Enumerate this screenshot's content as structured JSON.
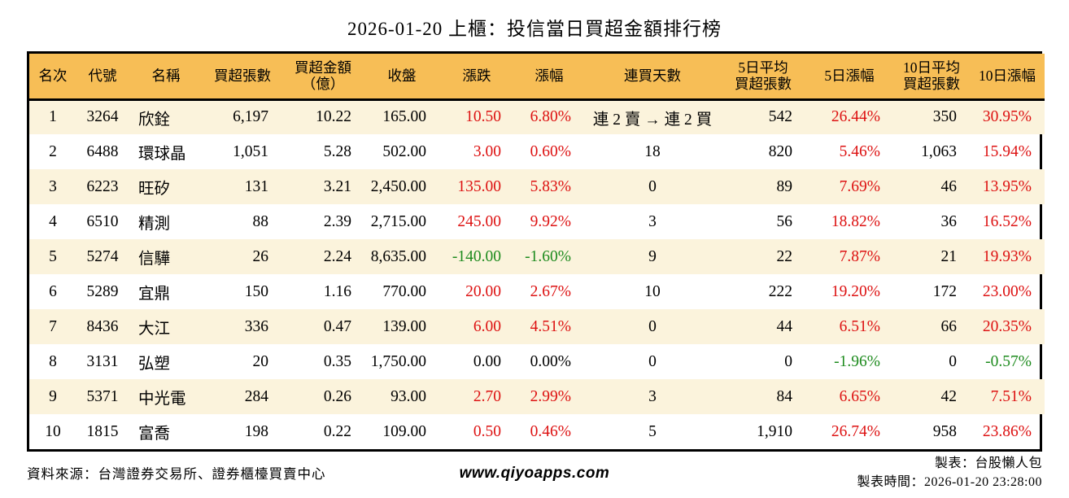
{
  "chart_data": {
    "type": "table",
    "title": "2026-01-20 上櫃：投信當日買超金額排行榜",
    "columns": [
      {
        "id": "rank",
        "label": "名次",
        "align": "center"
      },
      {
        "id": "code",
        "label": "代號",
        "align": "center"
      },
      {
        "id": "name",
        "label": "名稱",
        "align": "left"
      },
      {
        "id": "net-buy-volume",
        "label": "買超張數",
        "align": "right"
      },
      {
        "id": "net-buy-amount",
        "label": "買超金額\n（億）",
        "align": "right"
      },
      {
        "id": "close",
        "label": "收盤",
        "align": "right"
      },
      {
        "id": "change",
        "label": "漲跌",
        "align": "right"
      },
      {
        "id": "change-pct",
        "label": "漲幅",
        "align": "right"
      },
      {
        "id": "consecutive-days",
        "label": "連買天數",
        "align": "center"
      },
      {
        "id": "avg5-volume",
        "label": "5日平均\n買超張數",
        "align": "right"
      },
      {
        "id": "gain5",
        "label": "5日漲幅",
        "align": "right"
      },
      {
        "id": "avg10-volume",
        "label": "10日平均\n買超張數",
        "align": "right"
      },
      {
        "id": "gain10",
        "label": "10日漲幅",
        "align": "right"
      }
    ],
    "rows": [
      {
        "cells": [
          "1",
          "3264",
          "欣銓",
          "6,197",
          "10.22",
          "165.00",
          "10.50",
          "6.80%",
          "連 2 賣 → 連 2 買",
          "542",
          "26.44%",
          "350",
          "30.95%"
        ],
        "colors": [
          null,
          null,
          null,
          null,
          null,
          null,
          "up",
          "up",
          null,
          null,
          "up",
          null,
          "up"
        ]
      },
      {
        "cells": [
          "2",
          "6488",
          "環球晶",
          "1,051",
          "5.28",
          "502.00",
          "3.00",
          "0.60%",
          "18",
          "820",
          "5.46%",
          "1,063",
          "15.94%"
        ],
        "colors": [
          null,
          null,
          null,
          null,
          null,
          null,
          "up",
          "up",
          null,
          null,
          "up",
          null,
          "up"
        ]
      },
      {
        "cells": [
          "3",
          "6223",
          "旺矽",
          "131",
          "3.21",
          "2,450.00",
          "135.00",
          "5.83%",
          "0",
          "89",
          "7.69%",
          "46",
          "13.95%"
        ],
        "colors": [
          null,
          null,
          null,
          null,
          null,
          null,
          "up",
          "up",
          null,
          null,
          "up",
          null,
          "up"
        ]
      },
      {
        "cells": [
          "4",
          "6510",
          "精測",
          "88",
          "2.39",
          "2,715.00",
          "245.00",
          "9.92%",
          "3",
          "56",
          "18.82%",
          "36",
          "16.52%"
        ],
        "colors": [
          null,
          null,
          null,
          null,
          null,
          null,
          "up",
          "up",
          null,
          null,
          "up",
          null,
          "up"
        ]
      },
      {
        "cells": [
          "5",
          "5274",
          "信驊",
          "26",
          "2.24",
          "8,635.00",
          "-140.00",
          "-1.60%",
          "9",
          "22",
          "7.87%",
          "21",
          "19.93%"
        ],
        "colors": [
          null,
          null,
          null,
          null,
          null,
          null,
          "down",
          "down",
          null,
          null,
          "up",
          null,
          "up"
        ]
      },
      {
        "cells": [
          "6",
          "5289",
          "宜鼎",
          "150",
          "1.16",
          "770.00",
          "20.00",
          "2.67%",
          "10",
          "222",
          "19.20%",
          "172",
          "23.00%"
        ],
        "colors": [
          null,
          null,
          null,
          null,
          null,
          null,
          "up",
          "up",
          null,
          null,
          "up",
          null,
          "up"
        ]
      },
      {
        "cells": [
          "7",
          "8436",
          "大江",
          "336",
          "0.47",
          "139.00",
          "6.00",
          "4.51%",
          "0",
          "44",
          "6.51%",
          "66",
          "20.35%"
        ],
        "colors": [
          null,
          null,
          null,
          null,
          null,
          null,
          "up",
          "up",
          null,
          null,
          "up",
          null,
          "up"
        ]
      },
      {
        "cells": [
          "8",
          "3131",
          "弘塑",
          "20",
          "0.35",
          "1,750.00",
          "0.00",
          "0.00%",
          "0",
          "0",
          "-1.96%",
          "0",
          "-0.57%"
        ],
        "colors": [
          null,
          null,
          null,
          null,
          null,
          null,
          null,
          null,
          null,
          null,
          "down",
          null,
          "down"
        ]
      },
      {
        "cells": [
          "9",
          "5371",
          "中光電",
          "284",
          "0.26",
          "93.00",
          "2.70",
          "2.99%",
          "3",
          "84",
          "6.65%",
          "42",
          "7.51%"
        ],
        "colors": [
          null,
          null,
          null,
          null,
          null,
          null,
          "up",
          "up",
          null,
          null,
          "up",
          null,
          "up"
        ]
      },
      {
        "cells": [
          "10",
          "1815",
          "富喬",
          "198",
          "0.22",
          "109.00",
          "0.50",
          "0.46%",
          "5",
          "1,910",
          "26.74%",
          "958",
          "23.86%"
        ],
        "colors": [
          null,
          null,
          null,
          null,
          null,
          null,
          "up",
          "up",
          null,
          null,
          "up",
          null,
          "up"
        ]
      }
    ],
    "layout": {
      "grid": false,
      "zebra_rows": true
    }
  },
  "colors": {
    "up": "#dd1111",
    "down": "#1e8b1e",
    "header_bg": "#f7be56",
    "row_alt_bg": "#fbf3dc",
    "border": "#000000"
  },
  "footer": {
    "source": "資料來源：台灣證券交易所、證券櫃檯買賣中心",
    "website": "www.qiyoapps.com",
    "maker": "製表：台股懶人包",
    "made_time": "製表時間：2026-01-20 23:28:00"
  }
}
